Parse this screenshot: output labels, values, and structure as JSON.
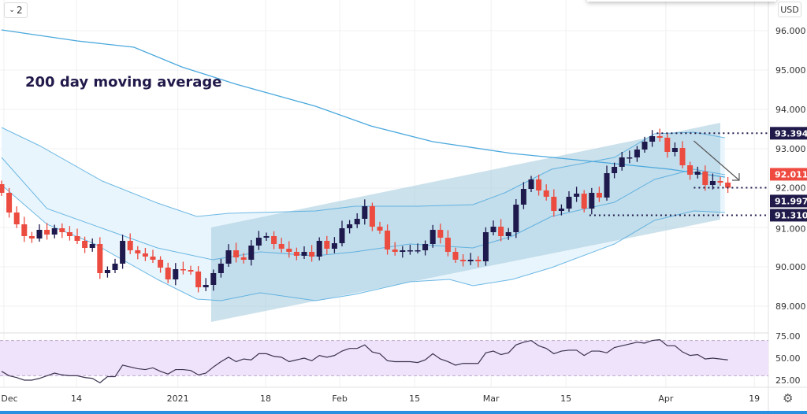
{
  "toolbar": {
    "legend_toggle": "2",
    "currency": "USD"
  },
  "annotation": "200 day moving average",
  "chart_data": {
    "type": "candlestick",
    "title": "",
    "instrument_currency": "USD",
    "first_open": 92.1,
    "closes": [
      91.88,
      91.38,
      91.08,
      90.78,
      90.72,
      90.94,
      90.82,
      90.98,
      90.88,
      90.78,
      90.66,
      90.48,
      90.58,
      89.84,
      89.92,
      90.08,
      90.66,
      90.42,
      90.34,
      90.26,
      90.18,
      89.98,
      89.68,
      89.94,
      89.92,
      89.88,
      89.48,
      89.54,
      89.84,
      90.08,
      90.42,
      90.24,
      90.18,
      90.54,
      90.74,
      90.78,
      90.58,
      90.46,
      90.38,
      90.28,
      90.38,
      90.26,
      90.66,
      90.46,
      90.6,
      90.98,
      91.08,
      91.22,
      91.54,
      91.02,
      90.92,
      90.44,
      90.38,
      90.42,
      90.42,
      90.42,
      90.58,
      90.94,
      90.74,
      90.38,
      90.18,
      90.14,
      90.18,
      90.14,
      90.88,
      91.02,
      90.78,
      90.88,
      91.58,
      91.98,
      92.22,
      91.94,
      91.78,
      91.42,
      91.48,
      91.78,
      91.86,
      91.48,
      91.88,
      91.76,
      92.38,
      92.54,
      92.78,
      92.78,
      92.98,
      93.18,
      93.32,
      93.28,
      92.92,
      93.02,
      92.58,
      92.34,
      92.42,
      92.08,
      92.18,
      92.14,
      92.01
    ],
    "ma200": [
      [
        0,
        96.02
      ],
      [
        10,
        95.74
      ],
      [
        17.5,
        95.58
      ],
      [
        23.8,
        95.08
      ],
      [
        31,
        94.64
      ],
      [
        41.5,
        94.08
      ],
      [
        48.8,
        93.58
      ],
      [
        57,
        93.18
      ],
      [
        67.5,
        92.88
      ],
      [
        78,
        92.68
      ],
      [
        88.3,
        92.48
      ],
      [
        95.6,
        92.28
      ]
    ],
    "bb_upper": [
      [
        0,
        93.54
      ],
      [
        5,
        93.08
      ],
      [
        13.3,
        92.18
      ],
      [
        20.6,
        91.62
      ],
      [
        25.8,
        91.28
      ],
      [
        30,
        91.36
      ],
      [
        41.5,
        91.42
      ],
      [
        46.7,
        91.54
      ],
      [
        55,
        91.54
      ],
      [
        62.3,
        91.58
      ],
      [
        66.5,
        91.88
      ],
      [
        72.7,
        92.48
      ],
      [
        81,
        92.78
      ],
      [
        86.3,
        93.38
      ],
      [
        91.5,
        93.42
      ],
      [
        95.6,
        93.28
      ]
    ],
    "bb_mid": [
      [
        0,
        92.78
      ],
      [
        6,
        91.48
      ],
      [
        13.3,
        90.98
      ],
      [
        20.6,
        90.48
      ],
      [
        27.9,
        90.18
      ],
      [
        34.2,
        90.38
      ],
      [
        41.5,
        90.28
      ],
      [
        46.7,
        90.38
      ],
      [
        54,
        90.58
      ],
      [
        62.3,
        90.48
      ],
      [
        67.5,
        90.78
      ],
      [
        72.7,
        91.28
      ],
      [
        81,
        91.64
      ],
      [
        86.3,
        92.22
      ],
      [
        91.5,
        92.48
      ],
      [
        95.6,
        92.34
      ]
    ],
    "bb_lower": [
      [
        0,
        92.08
      ],
      [
        6,
        91.08
      ],
      [
        12.3,
        90.58
      ],
      [
        20.6,
        89.68
      ],
      [
        25.8,
        89.18
      ],
      [
        29,
        89.14
      ],
      [
        34.2,
        89.34
      ],
      [
        41.5,
        89.14
      ],
      [
        46.7,
        89.3
      ],
      [
        54,
        89.62
      ],
      [
        59.2,
        89.68
      ],
      [
        62.3,
        89.52
      ],
      [
        67.5,
        89.68
      ],
      [
        72.7,
        89.98
      ],
      [
        81,
        90.58
      ],
      [
        86.3,
        91.18
      ],
      [
        91.5,
        91.42
      ],
      [
        95.6,
        91.38
      ]
    ],
    "rsi": [
      35,
      30,
      28,
      25,
      25,
      27,
      30,
      33,
      31,
      30,
      30,
      28,
      27,
      22,
      29,
      29,
      42,
      40,
      38,
      37,
      39,
      35,
      32,
      37,
      37,
      36,
      31,
      33,
      40,
      46,
      51,
      46,
      49,
      48,
      55,
      55,
      52,
      51,
      46,
      48,
      50,
      47,
      53,
      51,
      53,
      58,
      61,
      61,
      65,
      57,
      55,
      47,
      46,
      46,
      46,
      45,
      48,
      55,
      49,
      46,
      42,
      44,
      44,
      44,
      56,
      58,
      54,
      56,
      65,
      68,
      70,
      64,
      61,
      55,
      58,
      59,
      59,
      53,
      58,
      58,
      56,
      62,
      64,
      66,
      68,
      67,
      70,
      71,
      64,
      64,
      57,
      53,
      54,
      49,
      50,
      49,
      48
    ],
    "rsi_band": [
      30,
      70
    ],
    "ylim": [
      88.6,
      96.8
    ],
    "y_ticks": [
      "96.000",
      "95.000",
      "94.000",
      "93.000",
      "92.000",
      "91.000",
      "90.000",
      "89.000"
    ],
    "y_tick_values": [
      96,
      95,
      94,
      93,
      92,
      91,
      90,
      89
    ],
    "rsi_ticks": [
      "75.00",
      "50.00",
      "25.00"
    ],
    "rsi_tick_values": [
      75,
      50,
      25
    ],
    "x_ticks": [
      {
        "label": "Dec",
        "index": 0.3
      },
      {
        "label": "14",
        "index": 9.9
      },
      {
        "label": "2021",
        "index": 23.3
      },
      {
        "label": "18",
        "index": 34.9
      },
      {
        "label": "Feb",
        "index": 44.7
      },
      {
        "label": "15",
        "index": 54.6
      },
      {
        "label": "Mar",
        "index": 64.7
      },
      {
        "label": "15",
        "index": 74.6
      },
      {
        "label": "Apr",
        "index": 87.8
      },
      {
        "label": "19",
        "index": 99.5
      }
    ],
    "price_labels": [
      {
        "text": "93.394",
        "value": 93.394,
        "color": "#1f1a4a"
      },
      {
        "text": "92.011",
        "value": 92.011,
        "color": "#ef4a3f"
      },
      {
        "text": "91.997",
        "value": 91.997,
        "color": "#1f1a4a"
      },
      {
        "text": "91.310",
        "value": 91.31,
        "color": "#1f1a4a"
      }
    ],
    "levels": [
      {
        "value": 93.394,
        "from_index": 86.6
      },
      {
        "value": 92.011,
        "from_index": 91.5
      },
      {
        "value": 91.31,
        "from_index": 77.7
      }
    ],
    "channel": {
      "start_index": 27.7,
      "end_index": 95,
      "top": [
        91.0,
        93.66
      ],
      "bottom": [
        88.6,
        91.2
      ]
    },
    "arrow": {
      "from": [
        91.5,
        93.2
      ],
      "to": [
        97.5,
        92.2
      ]
    },
    "colors": {
      "up": "#1e1a4d",
      "down": "#ec4b40",
      "ma": "#4aa8dd",
      "band_fill": "#e9f5fc",
      "channel_fill": "#a9cde0",
      "rsi_fill": "#efe3fb",
      "rsi_line": "#3c3350"
    }
  }
}
